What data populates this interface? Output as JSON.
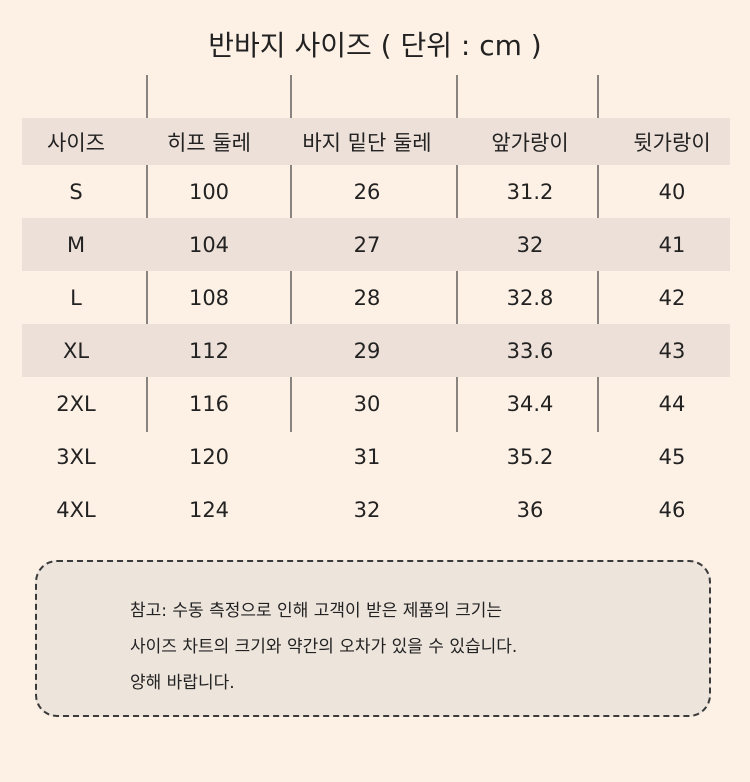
{
  "title": "반바지 사이즈 ( 단위 : cm )",
  "table": {
    "headers": [
      "사이즈",
      "히프 둘레",
      "바지 밑단 둘레",
      "앞가랑이",
      "뒷가랑이"
    ],
    "rows": [
      [
        "S",
        "100",
        "26",
        "31.2",
        "40"
      ],
      [
        "M",
        "104",
        "27",
        "32",
        "41"
      ],
      [
        "L",
        "108",
        "28",
        "32.8",
        "42"
      ],
      [
        "XL",
        "112",
        "29",
        "33.6",
        "43"
      ],
      [
        "2XL",
        "116",
        "30",
        "34.4",
        "44"
      ],
      [
        "3XL",
        "120",
        "31",
        "35.2",
        "45"
      ],
      [
        "4XL",
        "124",
        "32",
        "36",
        "46"
      ]
    ]
  },
  "note": {
    "lines": [
      "참고: 수동 측정으로 인해 고객이 받은 제품의 크기는",
      "사이즈 차트의 크기와 약간의 오차가 있을 수 있습니다.",
      "양해 바랍니다."
    ]
  }
}
